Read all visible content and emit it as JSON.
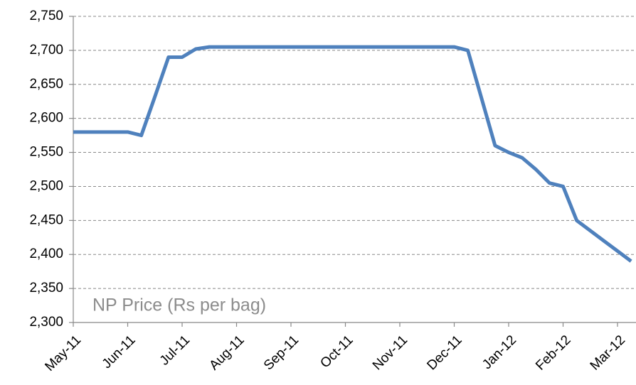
{
  "chart_data": {
    "type": "line",
    "annotation": "NP Price (Rs per bag)",
    "categories": [
      "May-11",
      null,
      null,
      null,
      "Jun-11",
      null,
      null,
      null,
      "Jul-11",
      null,
      null,
      null,
      "Aug-11",
      null,
      null,
      null,
      "Sep-11",
      null,
      null,
      null,
      "Oct-11",
      null,
      null,
      null,
      "Nov-11",
      null,
      null,
      null,
      "Dec-11",
      null,
      null,
      null,
      "Jan-12",
      null,
      null,
      null,
      "Feb-12",
      null,
      null,
      null,
      "Mar-12",
      null
    ],
    "series": [
      {
        "name": "NP Price",
        "color": "#4f81bd",
        "values": [
          2580,
          2580,
          2580,
          2580,
          2580,
          2575,
          2632,
          2690,
          2690,
          2702,
          2705,
          2705,
          2705,
          2705,
          2705,
          2705,
          2705,
          2705,
          2705,
          2705,
          2705,
          2705,
          2705,
          2705,
          2705,
          2705,
          2705,
          2705,
          2705,
          2700,
          2630,
          2560,
          2550,
          2542,
          2525,
          2505,
          2500,
          2450,
          2435,
          2420,
          2405,
          2390
        ]
      }
    ],
    "ylim": [
      2300,
      2750
    ],
    "yticks": [
      {
        "value": 2300,
        "label": "2,300"
      },
      {
        "value": 2350,
        "label": "2,350"
      },
      {
        "value": 2400,
        "label": "2,400"
      },
      {
        "value": 2450,
        "label": "2,450"
      },
      {
        "value": 2500,
        "label": "2,500"
      },
      {
        "value": 2550,
        "label": "2,550"
      },
      {
        "value": 2600,
        "label": "2,600"
      },
      {
        "value": 2650,
        "label": "2,650"
      },
      {
        "value": 2700,
        "label": "2,700"
      },
      {
        "value": 2750,
        "label": "2,750"
      }
    ],
    "grid": true
  }
}
